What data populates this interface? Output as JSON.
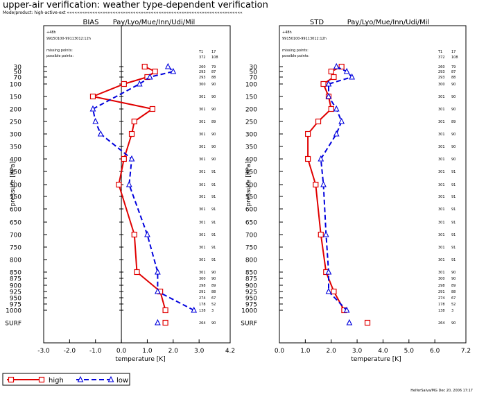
{
  "title": "upper-air verification: weather type-dependent verification",
  "subtitle": "Mode/product: high-active-ext «««««««««««««««««««««««««««««««««««««««««««««««««««««««««««««««««««««",
  "footer": "HelferSalva/MG Dec 20, 2006 17:17",
  "colors": {
    "high": "#e00000",
    "low": "#0000dd",
    "axis": "#000000"
  },
  "legend": [
    {
      "name": "high",
      "marker": "square"
    },
    {
      "name": "low",
      "marker": "triangle"
    }
  ],
  "chart_data": [
    {
      "type": "line",
      "panel_label": "BIAS",
      "region": "Pay/Lyo/Mue/Inn/Udi/Mil",
      "lead": "+48h",
      "period": "99150100-99113012:12h",
      "missing_label": "missing points:",
      "possible_label": "possible points:",
      "counts_header": [
        "T1",
        "17"
      ],
      "counts_summary": [
        "372",
        "108"
      ],
      "xlabel": "temperature [K]",
      "ylabel": "pressure [hPa]",
      "xlim": [
        -3.0,
        4.2
      ],
      "xticks": [
        "-3.0",
        "-2.0",
        "-1.0",
        "0.0",
        "1.0",
        "2.0",
        "3.0",
        "4.2"
      ],
      "xtick_values": [
        -3.0,
        -2.0,
        -1.0,
        0.0,
        1.0,
        2.0,
        3.0,
        4.2
      ],
      "zero_line": 0.0,
      "levels": [
        "30",
        "50",
        "70",
        "100",
        "150",
        "200",
        "250",
        "300",
        "350",
        "400",
        "450",
        "500",
        "550",
        "600",
        "650",
        "700",
        "750",
        "800",
        "850",
        "875",
        "900",
        "925",
        "950",
        "975",
        "1000",
        "SURF"
      ],
      "counts": [
        [
          "260",
          "79"
        ],
        [
          "293",
          "87"
        ],
        [
          "293",
          "88"
        ],
        [
          "300",
          "90"
        ],
        [
          "301",
          "90"
        ],
        [
          "301",
          "90"
        ],
        [
          "301",
          "89"
        ],
        [
          "301",
          "90"
        ],
        [
          "301",
          "90"
        ],
        [
          "301",
          "90"
        ],
        [
          "301",
          "91"
        ],
        [
          "301",
          "91"
        ],
        [
          "301",
          "91"
        ],
        [
          "301",
          "91"
        ],
        [
          "301",
          "91"
        ],
        [
          "301",
          "91"
        ],
        [
          "301",
          "91"
        ],
        [
          "301",
          "91"
        ],
        [
          "301",
          "90"
        ],
        [
          "300",
          "90"
        ],
        [
          "298",
          "89"
        ],
        [
          "291",
          "88"
        ],
        [
          "274",
          "67"
        ],
        [
          "178",
          "52"
        ],
        [
          "138",
          "3"
        ],
        [
          "264",
          "90"
        ]
      ],
      "series": [
        {
          "name": "high",
          "values": [
            0.9,
            1.3,
            1.0,
            0.1,
            -1.1,
            1.2,
            0.5,
            0.4,
            null,
            0.1,
            null,
            -0.1,
            null,
            null,
            null,
            0.5,
            null,
            null,
            0.6,
            null,
            null,
            1.5,
            null,
            null,
            1.7,
            1.7
          ]
        },
        {
          "name": "low",
          "values": [
            1.8,
            2.0,
            1.1,
            0.7,
            null,
            -1.1,
            -1.0,
            -0.8,
            null,
            0.4,
            null,
            0.3,
            null,
            null,
            null,
            1.0,
            null,
            null,
            1.4,
            null,
            null,
            1.4,
            null,
            null,
            2.8,
            1.4
          ]
        }
      ]
    },
    {
      "type": "line",
      "panel_label": "STD",
      "region": "Pay/Lyo/Mue/Inn/Udi/Mil",
      "lead": "+48h",
      "period": "99150100-99113012:12h",
      "missing_label": "missing points:",
      "possible_label": "possible points:",
      "counts_header": [
        "T1",
        "17"
      ],
      "counts_summary": [
        "372",
        "108"
      ],
      "xlabel": "temperature [K]",
      "ylabel": "pressure [hPa]",
      "xlim": [
        0.0,
        7.2
      ],
      "xticks": [
        "0.0",
        "1.0",
        "2.0",
        "3.0",
        "4.0",
        "5.0",
        "6.0",
        "7.2"
      ],
      "xtick_values": [
        0.0,
        1.0,
        2.0,
        3.0,
        4.0,
        5.0,
        6.0,
        7.2
      ],
      "levels": [
        "30",
        "50",
        "70",
        "100",
        "150",
        "200",
        "250",
        "300",
        "350",
        "400",
        "450",
        "500",
        "550",
        "600",
        "650",
        "700",
        "750",
        "800",
        "850",
        "875",
        "900",
        "925",
        "950",
        "975",
        "1000",
        "SURF"
      ],
      "counts": [
        [
          "260",
          "79"
        ],
        [
          "293",
          "87"
        ],
        [
          "293",
          "88"
        ],
        [
          "300",
          "90"
        ],
        [
          "301",
          "90"
        ],
        [
          "301",
          "90"
        ],
        [
          "301",
          "89"
        ],
        [
          "301",
          "90"
        ],
        [
          "301",
          "90"
        ],
        [
          "301",
          "90"
        ],
        [
          "301",
          "91"
        ],
        [
          "301",
          "91"
        ],
        [
          "301",
          "91"
        ],
        [
          "301",
          "91"
        ],
        [
          "301",
          "91"
        ],
        [
          "301",
          "91"
        ],
        [
          "301",
          "91"
        ],
        [
          "301",
          "91"
        ],
        [
          "301",
          "90"
        ],
        [
          "300",
          "90"
        ],
        [
          "298",
          "89"
        ],
        [
          "291",
          "88"
        ],
        [
          "274",
          "67"
        ],
        [
          "178",
          "52"
        ],
        [
          "138",
          "3"
        ],
        [
          "264",
          "90"
        ]
      ],
      "series": [
        {
          "name": "high",
          "values": [
            2.4,
            2.0,
            2.1,
            1.7,
            1.9,
            2.0,
            1.5,
            1.1,
            null,
            1.1,
            null,
            1.4,
            null,
            null,
            null,
            1.6,
            null,
            null,
            1.8,
            null,
            null,
            2.1,
            null,
            null,
            2.5,
            3.4
          ]
        },
        {
          "name": "low",
          "values": [
            2.2,
            2.6,
            2.8,
            1.9,
            1.9,
            2.2,
            2.4,
            2.2,
            null,
            1.6,
            null,
            1.7,
            null,
            null,
            null,
            1.8,
            null,
            null,
            1.9,
            null,
            null,
            1.9,
            null,
            null,
            2.6,
            2.7
          ]
        }
      ]
    }
  ]
}
